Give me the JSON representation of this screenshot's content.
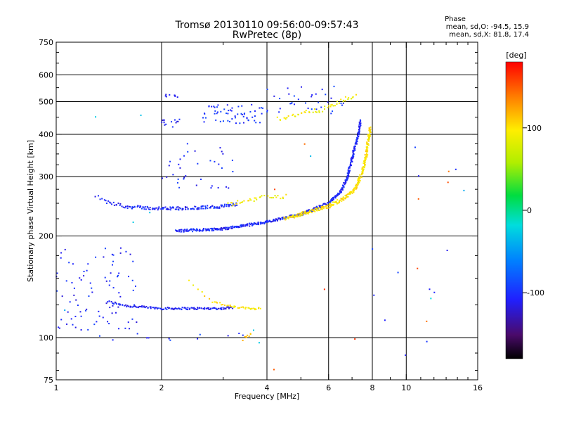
{
  "header": {
    "title_line1": "Tromsø 20130110 09:56:00-09:57:43",
    "title_line2": "RwPretec (8p)",
    "phase_block": {
      "heading": "Phase",
      "o_stats": "mean, sd,O: -94.5, 15.9",
      "x_stats": "mean, sd,X:  81.8, 17.4"
    }
  },
  "colorbar": {
    "unit_label": "[deg]",
    "tick_labels": [
      "100",
      "0",
      "-100"
    ],
    "tick_values": [
      100,
      0,
      -100
    ],
    "range": [
      -180,
      180
    ],
    "colormap": "rainbow (black → purple → blue → cyan → green → yellow → orange → red)"
  },
  "chart_data": {
    "type": "scatter",
    "xlabel": "Frequency [MHz]",
    "ylabel": "Stationary phase Virtual Height [km]",
    "x_scale": "log",
    "y_scale": "log",
    "xlim": [
      1,
      16
    ],
    "ylim": [
      75,
      750
    ],
    "x_ticks": [
      1,
      2,
      4,
      6,
      8,
      10,
      16
    ],
    "x_tick_labels": [
      "1",
      "2",
      "4",
      "6",
      "8",
      "10",
      "16"
    ],
    "x_grid_lines": [
      2,
      4,
      6,
      8,
      10
    ],
    "y_ticks": [
      75,
      100,
      200,
      300,
      400,
      500,
      600,
      750
    ],
    "y_tick_labels": [
      "75",
      "100",
      "200",
      "300",
      "400",
      "500",
      "600",
      "750"
    ],
    "y_grid_lines": [
      100,
      200,
      300,
      400,
      500,
      600
    ],
    "grid": true,
    "color_encodes": "phase [deg]",
    "traces": [
      {
        "kind": "curve",
        "phase": -110,
        "density": 55,
        "scatter": 0.01,
        "pts": [
          [
            1.4,
            128
          ],
          [
            1.6,
            124
          ],
          [
            2.0,
            122
          ],
          [
            2.5,
            122
          ],
          [
            3.0,
            122
          ],
          [
            3.2,
            123
          ]
        ]
      },
      {
        "kind": "curve",
        "phase": 100,
        "density": 45,
        "scatter": 0.01,
        "pts": [
          [
            2.4,
            148
          ],
          [
            2.6,
            136
          ],
          [
            2.8,
            128
          ],
          [
            3.1,
            124
          ],
          [
            3.5,
            122
          ],
          [
            3.85,
            122
          ]
        ]
      },
      {
        "kind": "curve",
        "phase": -105,
        "density": 80,
        "scatter": 0.012,
        "pts": [
          [
            2.2,
            207
          ],
          [
            3.0,
            210
          ],
          [
            4.0,
            220
          ],
          [
            5.0,
            232
          ],
          [
            6.0,
            250
          ],
          [
            6.5,
            270
          ],
          [
            6.8,
            300
          ],
          [
            7.0,
            340
          ],
          [
            7.3,
            400
          ],
          [
            7.4,
            440
          ]
        ]
      },
      {
        "kind": "curve",
        "phase": 100,
        "density": 80,
        "scatter": 0.015,
        "pts": [
          [
            4.5,
            225
          ],
          [
            5.0,
            232
          ],
          [
            6.0,
            245
          ],
          [
            6.8,
            262
          ],
          [
            7.2,
            280
          ],
          [
            7.5,
            310
          ],
          [
            7.7,
            350
          ],
          [
            7.8,
            390
          ],
          [
            7.9,
            420
          ]
        ]
      },
      {
        "kind": "curve",
        "phase": -105,
        "density": 60,
        "scatter": 0.015,
        "pts": [
          [
            1.3,
            262
          ],
          [
            1.4,
            252
          ],
          [
            1.6,
            244
          ],
          [
            2.0,
            241
          ],
          [
            2.5,
            242
          ],
          [
            3.0,
            245
          ],
          [
            3.3,
            248
          ]
        ]
      },
      {
        "kind": "curve",
        "phase": 90,
        "density": 25,
        "scatter": 0.02,
        "pts": [
          [
            3.1,
            248
          ],
          [
            3.4,
            252
          ],
          [
            3.8,
            260
          ],
          [
            4.2,
            262
          ],
          [
            4.6,
            262
          ]
        ]
      },
      {
        "kind": "curve",
        "phase": 90,
        "density": 25,
        "scatter": 0.02,
        "pts": [
          [
            4.3,
            445
          ],
          [
            5.0,
            460
          ],
          [
            5.8,
            475
          ],
          [
            6.5,
            500
          ],
          [
            7.2,
            525
          ]
        ]
      },
      {
        "kind": "cluster",
        "phase": -100,
        "n": 60,
        "xr": [
          2.6,
          3.9
        ],
        "yr": [
          430,
          490
        ]
      },
      {
        "kind": "cluster",
        "phase": -100,
        "n": 35,
        "xr": [
          3.9,
          6.8
        ],
        "yr": [
          460,
          560
        ]
      },
      {
        "kind": "cluster",
        "phase": -105,
        "n": 90,
        "xr": [
          1.0,
          1.7
        ],
        "yr": [
          105,
          185
        ]
      },
      {
        "kind": "cluster",
        "phase": -105,
        "n": 35,
        "xr": [
          2.0,
          3.2
        ],
        "yr": [
          275,
          390
        ]
      },
      {
        "kind": "cluster",
        "phase": -110,
        "n": 14,
        "xr": [
          2.0,
          2.25
        ],
        "yr": [
          415,
          445
        ]
      },
      {
        "kind": "cluster",
        "phase": -110,
        "n": 8,
        "xr": [
          2.05,
          2.25
        ],
        "yr": [
          515,
          525
        ]
      },
      {
        "kind": "cluster",
        "phase": -100,
        "n": 12,
        "xr": [
          1.2,
          3.5
        ],
        "yr": [
          98,
          103
        ]
      },
      {
        "kind": "cluster",
        "phase": 120,
        "n": 8,
        "xr": [
          3.4,
          3.7
        ],
        "yr": [
          98,
          103
        ]
      },
      {
        "kind": "cluster",
        "phase": -100,
        "n": 12,
        "xr": [
          8.0,
          16
        ],
        "yr": [
          85,
          400
        ]
      },
      {
        "kind": "cluster",
        "phase": 150,
        "n": 10,
        "xr": [
          4.0,
          16
        ],
        "yr": [
          80,
          420
        ]
      },
      {
        "kind": "cluster",
        "phase": -30,
        "n": 10,
        "xr": [
          1.0,
          16
        ],
        "yr": [
          90,
          650
        ]
      }
    ]
  }
}
